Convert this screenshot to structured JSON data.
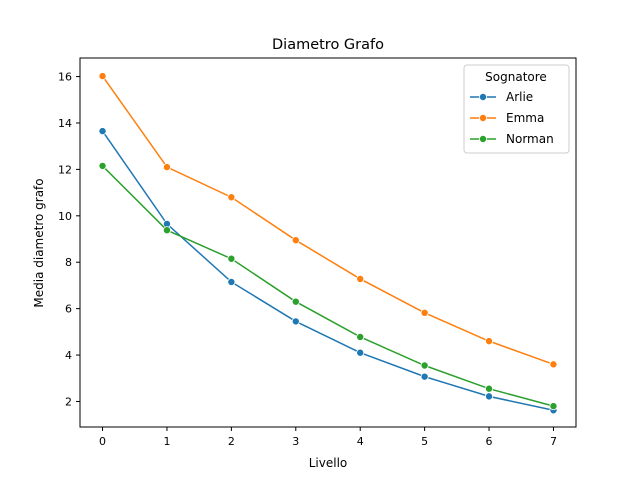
{
  "chart_data": {
    "type": "line",
    "title": "Diametro Grafo",
    "xlabel": "Livello",
    "ylabel": "Media diametro grafo",
    "x": [
      0,
      1,
      2,
      3,
      4,
      5,
      6,
      7
    ],
    "xlim": [
      -0.35,
      7.35
    ],
    "ylim": [
      0.9,
      16.8
    ],
    "xticks": [
      "0",
      "1",
      "2",
      "3",
      "4",
      "5",
      "6",
      "7"
    ],
    "yticks": [
      2,
      4,
      6,
      8,
      10,
      12,
      14,
      16
    ],
    "grid": false,
    "legend": {
      "title": "Sognatore",
      "placement": "top-right"
    },
    "series": [
      {
        "name": "Arlie",
        "color": "#1f77b4",
        "values": [
          13.65,
          9.65,
          7.15,
          5.45,
          4.1,
          3.07,
          2.22,
          1.62
        ]
      },
      {
        "name": "Emma",
        "color": "#ff7f0e",
        "values": [
          16.02,
          12.1,
          10.8,
          8.95,
          7.28,
          5.82,
          4.6,
          3.6
        ]
      },
      {
        "name": "Norman",
        "color": "#2ca02c",
        "values": [
          12.15,
          9.38,
          8.15,
          6.3,
          4.78,
          3.55,
          2.55,
          1.8
        ]
      }
    ]
  }
}
